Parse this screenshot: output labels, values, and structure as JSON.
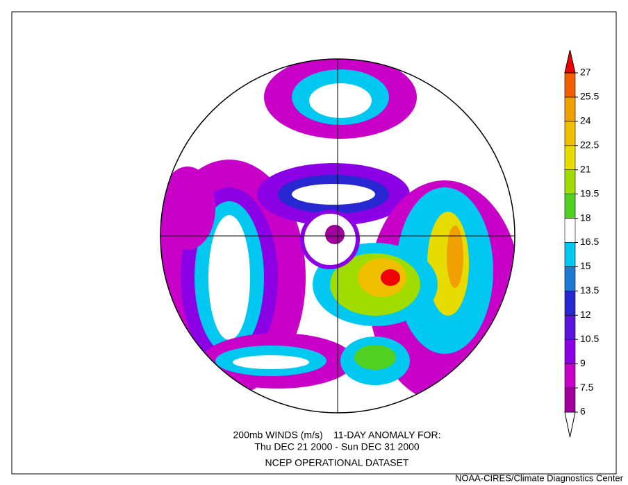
{
  "caption": {
    "line1": "200mb WINDS (m/s)    11-DAY ANOMALY FOR:",
    "line2": "Thu DEC 21 2000 - Sun DEC 31 2000",
    "line3": "NCEP OPERATIONAL DATASET"
  },
  "credit": "NOAA-CIRES/Climate Diagnostics Center",
  "colorbar": {
    "ticks": [
      6,
      7.5,
      9,
      10.5,
      12,
      13.5,
      15,
      16.5,
      18,
      19.5,
      21,
      22.5,
      24,
      25.5,
      27
    ],
    "colors": [
      "#ffffff",
      "#a0009b",
      "#c800c8",
      "#8c00e6",
      "#5a14dc",
      "#2828d2",
      "#1e78d2",
      "#00c8f0",
      "#ffffff",
      "#50d020",
      "#a0dc00",
      "#e6dc00",
      "#f0c000",
      "#f0a000",
      "#f06000",
      "#f00000"
    ]
  }
}
